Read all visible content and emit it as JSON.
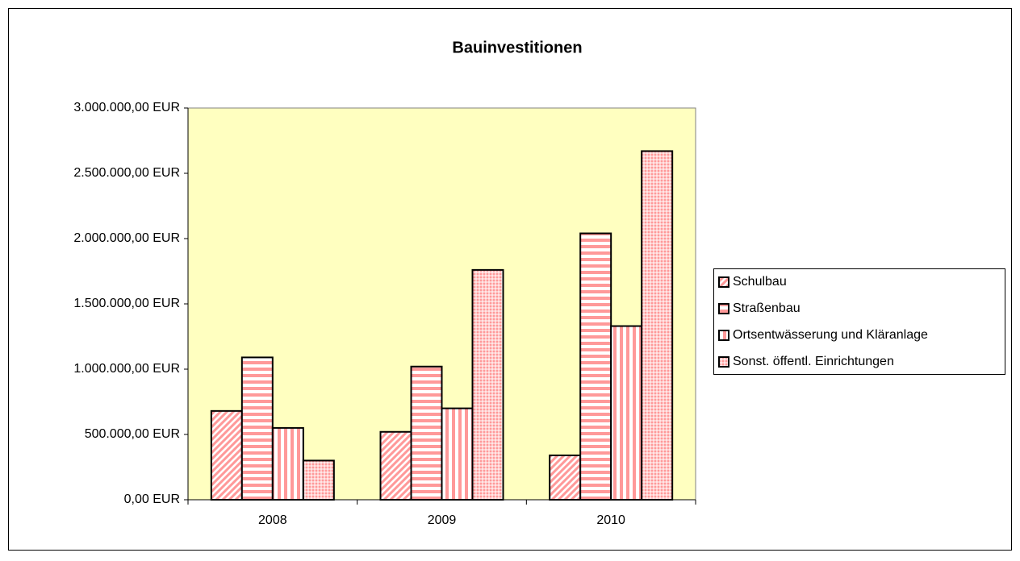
{
  "chart_data": {
    "type": "bar",
    "title": "Bauinvestitionen",
    "categories": [
      "2008",
      "2009",
      "2010"
    ],
    "series": [
      {
        "name": "Schulbau",
        "color": "#ff9999",
        "pattern": "diagonal",
        "values": [
          680000,
          520000,
          340000
        ]
      },
      {
        "name": "Straßenbau",
        "color": "#ff9999",
        "pattern": "horizontal",
        "values": [
          1090000,
          1020000,
          2040000
        ]
      },
      {
        "name": "Ortsentwässerung und Kläranlage",
        "color": "#ff9999",
        "pattern": "vertical",
        "values": [
          550000,
          700000,
          1330000
        ]
      },
      {
        "name": "Sonst. öffentl. Einrichtungen",
        "color": "#ff9999",
        "pattern": "grid",
        "values": [
          300000,
          1760000,
          2670000
        ]
      }
    ],
    "ylim": [
      0,
      3000000
    ],
    "yticks": [
      {
        "value": 0,
        "label": "0,00 EUR"
      },
      {
        "value": 500000,
        "label": "500.000,00 EUR"
      },
      {
        "value": 1000000,
        "label": "1.000.000,00 EUR"
      },
      {
        "value": 1500000,
        "label": "1.500.000,00 EUR"
      },
      {
        "value": 2000000,
        "label": "2.000.000,00 EUR"
      },
      {
        "value": 2500000,
        "label": "2.500.000,00 EUR"
      },
      {
        "value": 3000000,
        "label": "3.000.000,00 EUR"
      }
    ],
    "plot_background": "#ffffc0",
    "legend": "right"
  }
}
